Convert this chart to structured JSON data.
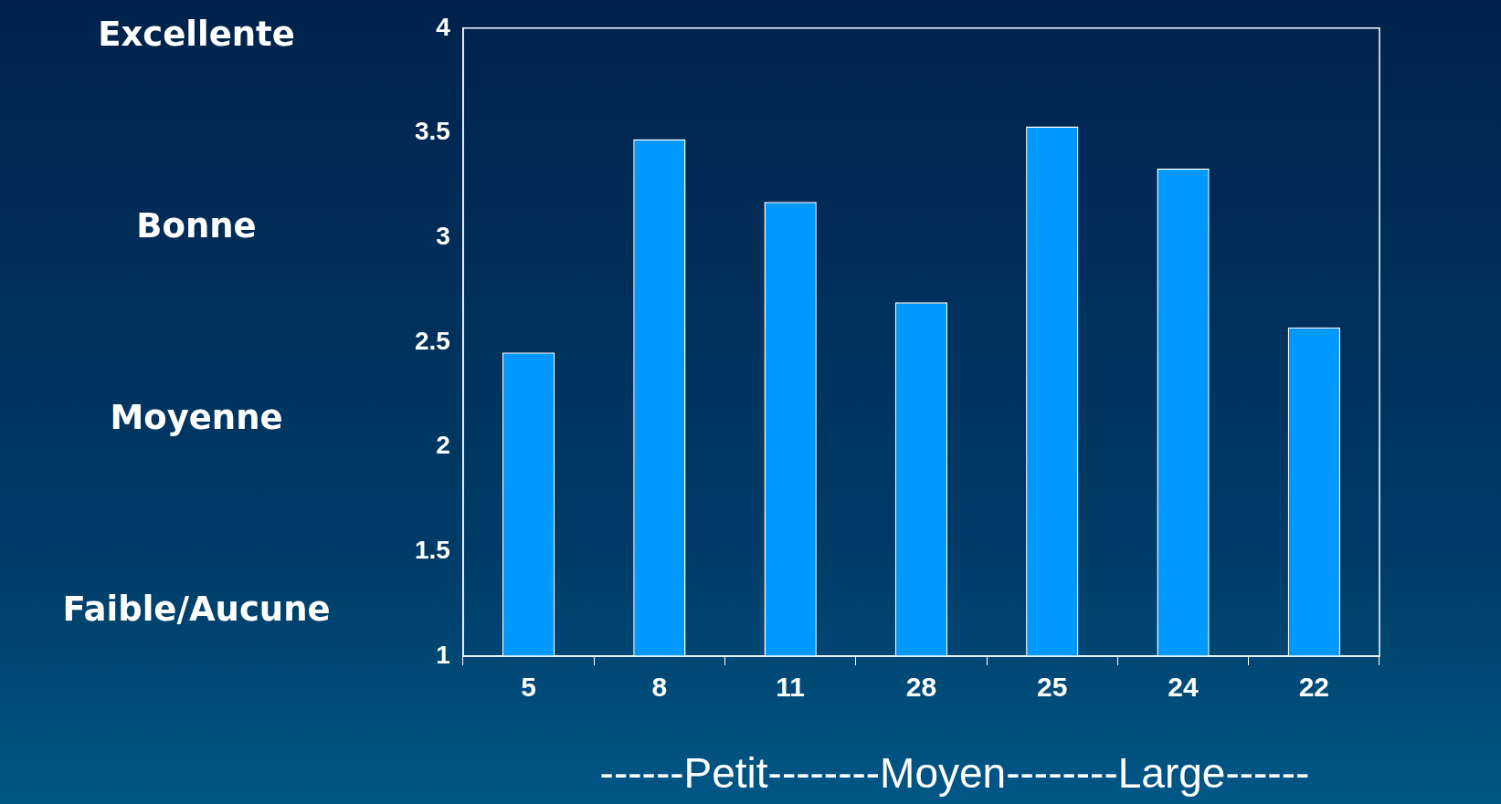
{
  "chart_data": {
    "type": "bar",
    "categories": [
      "5",
      "8",
      "11",
      "28",
      "25",
      "24",
      "22"
    ],
    "values": [
      2.45,
      3.47,
      3.17,
      2.69,
      3.53,
      3.33,
      2.57
    ],
    "color": "#0099ff",
    "ylim": [
      1,
      4
    ],
    "yticks": [
      1,
      1.5,
      2,
      2.5,
      3,
      3.5,
      4
    ],
    "xlabel": "------Petit--------Moyen--------Large------",
    "annotations": [
      "Excellente",
      "Bonne",
      "Moyenne",
      "Faible/Aucune"
    ],
    "grid": false,
    "legend": false
  }
}
